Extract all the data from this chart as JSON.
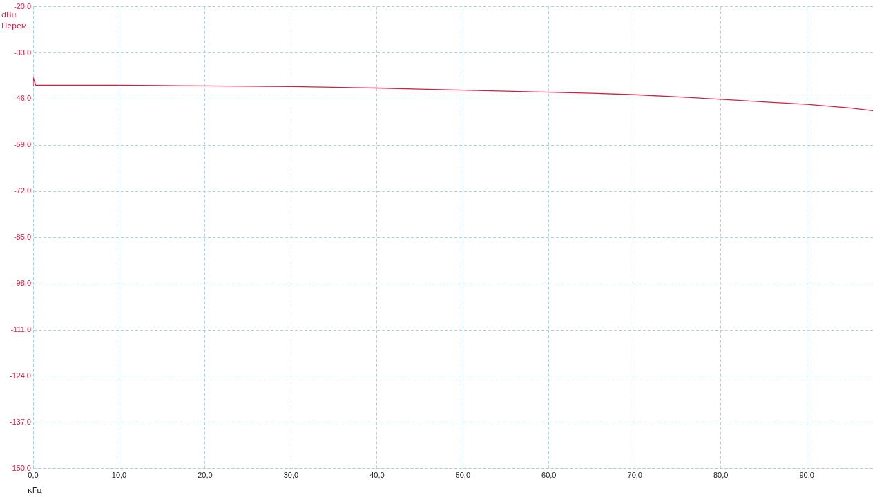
{
  "chart_data": {
    "type": "line",
    "ylabel": "dBu Перем.",
    "xlabel": "кГц",
    "series": [
      {
        "color": "#d42040",
        "x": [
          0,
          0,
          0.3,
          5,
          10,
          15,
          20,
          25,
          30,
          35,
          40,
          45,
          50,
          55,
          60,
          65,
          70,
          75,
          80,
          85,
          90,
          95,
          97.7
        ],
        "values": [
          -42.3,
          -40,
          -42.1,
          -42.1,
          -42.1,
          -42.2,
          -42.3,
          -42.4,
          -42.5,
          -42.7,
          -42.9,
          -43.2,
          -43.5,
          -43.8,
          -44.1,
          -44.4,
          -44.8,
          -45.4,
          -46.1,
          -46.8,
          -47.5,
          -48.5,
          -49.3
        ]
      }
    ],
    "xlim": [
      0,
      97.7
    ],
    "xticks": [
      {
        "value": 0,
        "label": "0,0"
      },
      {
        "value": 10,
        "label": "10,0"
      },
      {
        "value": 20,
        "label": "20,0"
      },
      {
        "value": 30,
        "label": "30,0"
      },
      {
        "value": 40,
        "label": "40,0"
      },
      {
        "value": 50,
        "label": "50,0"
      },
      {
        "value": 60,
        "label": "60,0"
      },
      {
        "value": 70,
        "label": "70,0"
      },
      {
        "value": 80,
        "label": "80,0"
      },
      {
        "value": 90,
        "label": "90,0"
      }
    ],
    "ylim": [
      -150,
      -20
    ],
    "yticks": [
      {
        "value": -150,
        "label": "-150,0"
      },
      {
        "value": -137,
        "label": "-137,0"
      },
      {
        "value": -124,
        "label": "-124,0"
      },
      {
        "value": -111,
        "label": "-111,0"
      },
      {
        "value": -98,
        "label": "-98,0"
      },
      {
        "value": -85,
        "label": "-85,0"
      },
      {
        "value": -72,
        "label": "-72,0"
      },
      {
        "value": -59,
        "label": "-59,0"
      },
      {
        "value": -46,
        "label": "-46,0"
      },
      {
        "value": -33,
        "label": "-33,0"
      },
      {
        "value": -20,
        "label": "-20,0"
      }
    ],
    "grid": true,
    "marker": "none",
    "line_style": "solid",
    "legend": false
  }
}
